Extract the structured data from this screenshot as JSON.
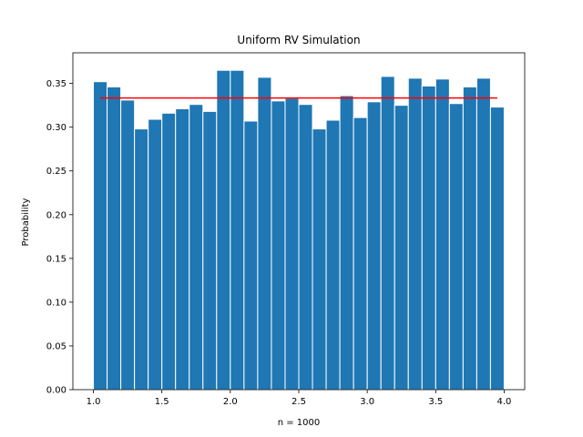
{
  "chart_data": {
    "type": "bar",
    "title": "Uniform RV Simulation",
    "xlabel": "n = 1000",
    "ylabel": "Probability",
    "xlim": [
      0.85,
      4.15
    ],
    "ylim": [
      0.0,
      0.385
    ],
    "xticks": [
      1.0,
      1.5,
      2.0,
      2.5,
      3.0,
      3.5,
      4.0
    ],
    "xtick_labels": [
      "1.0",
      "1.5",
      "2.0",
      "2.5",
      "3.0",
      "3.5",
      "4.0"
    ],
    "yticks": [
      0.0,
      0.05,
      0.1,
      0.15,
      0.2,
      0.25,
      0.3,
      0.35
    ],
    "ytick_labels": [
      "0.00",
      "0.05",
      "0.10",
      "0.15",
      "0.20",
      "0.25",
      "0.30",
      "0.35"
    ],
    "bin_edges": [
      1.0,
      1.1,
      1.2,
      1.3,
      1.4,
      1.5,
      1.6,
      1.7,
      1.8,
      1.9,
      2.0,
      2.1,
      2.2,
      2.3,
      2.4,
      2.5,
      2.6,
      2.7,
      2.8,
      2.9,
      3.0,
      3.1,
      3.2,
      3.3,
      3.4,
      3.5,
      3.6,
      3.7,
      3.8,
      3.9,
      4.0
    ],
    "values": [
      0.352,
      0.346,
      0.331,
      0.298,
      0.309,
      0.316,
      0.321,
      0.326,
      0.318,
      0.365,
      0.365,
      0.307,
      0.357,
      0.33,
      0.333,
      0.326,
      0.298,
      0.308,
      0.336,
      0.311,
      0.329,
      0.358,
      0.325,
      0.356,
      0.347,
      0.355,
      0.327,
      0.346,
      0.356,
      0.323
    ],
    "bar_color": "#1f77b4",
    "bar_edge_color": "#ffffff",
    "reference_line": {
      "x": [
        1.05,
        3.95
      ],
      "y": 0.3333,
      "color": "#ff0000"
    },
    "grid": false,
    "legend": "none"
  }
}
